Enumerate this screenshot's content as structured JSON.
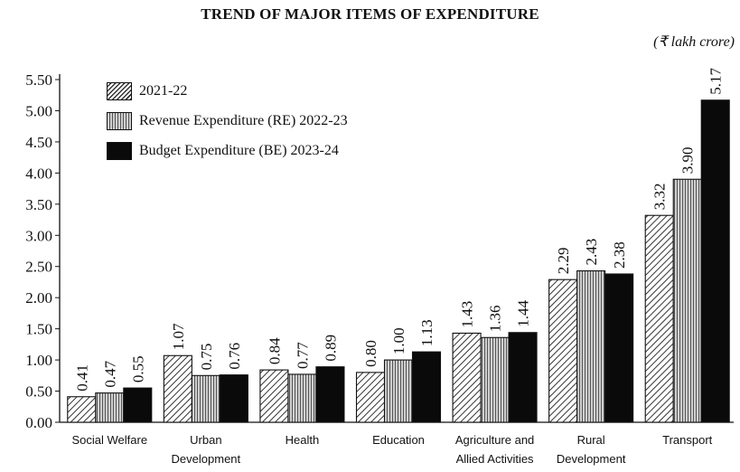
{
  "header": {
    "title": "TREND OF MAJOR ITEMS OF EXPENDITURE",
    "unit": "(₹ lakh crore)"
  },
  "chart_data": {
    "type": "bar",
    "title": "TREND OF MAJOR ITEMS OF EXPENDITURE",
    "unit": "(₹ lakh crore)",
    "categories": [
      [
        "Social Welfare"
      ],
      [
        "Urban",
        "Development"
      ],
      [
        "Health"
      ],
      [
        "Education"
      ],
      [
        "Agriculture and",
        "Allied Activities"
      ],
      [
        "Rural",
        "Development"
      ],
      [
        "Transport"
      ]
    ],
    "series": [
      {
        "name": "2021-22",
        "values": [
          0.41,
          1.07,
          0.84,
          0.8,
          1.43,
          2.29,
          3.32
        ],
        "labels": [
          "0.41",
          "1.07",
          "0.84",
          "0.80",
          "1.43",
          "2.29",
          "3.32"
        ],
        "pattern": "diagonal-hatch"
      },
      {
        "name": "Revenue Expenditure (RE) 2022-23",
        "values": [
          0.47,
          0.75,
          0.77,
          1.0,
          1.36,
          2.43,
          3.9
        ],
        "labels": [
          "0.47",
          "0.75",
          "0.77",
          "1.00",
          "1.36",
          "2.43",
          "3.90"
        ],
        "pattern": "vertical-stripes"
      },
      {
        "name": "Budget Expenditure (BE) 2023-24",
        "values": [
          0.55,
          0.76,
          0.89,
          1.13,
          1.44,
          2.38,
          5.17
        ],
        "labels": [
          "0.55",
          "0.76",
          "0.89",
          "1.13",
          "1.44",
          "2.38",
          "5.17"
        ],
        "pattern": "solid-black"
      }
    ],
    "yticks": [
      "0.00",
      "0.50",
      "1.00",
      "1.50",
      "2.00",
      "2.50",
      "3.00",
      "3.50",
      "4.00",
      "4.50",
      "5.00",
      "5.50"
    ],
    "ylim": [
      0,
      5.5
    ],
    "grid": false,
    "legend_position": "top-left",
    "colors": {
      "ink": "#111111",
      "solid": "#0a0a0a",
      "stripe_light": "#cfcfcf",
      "stripe_dark": "#555555"
    }
  }
}
